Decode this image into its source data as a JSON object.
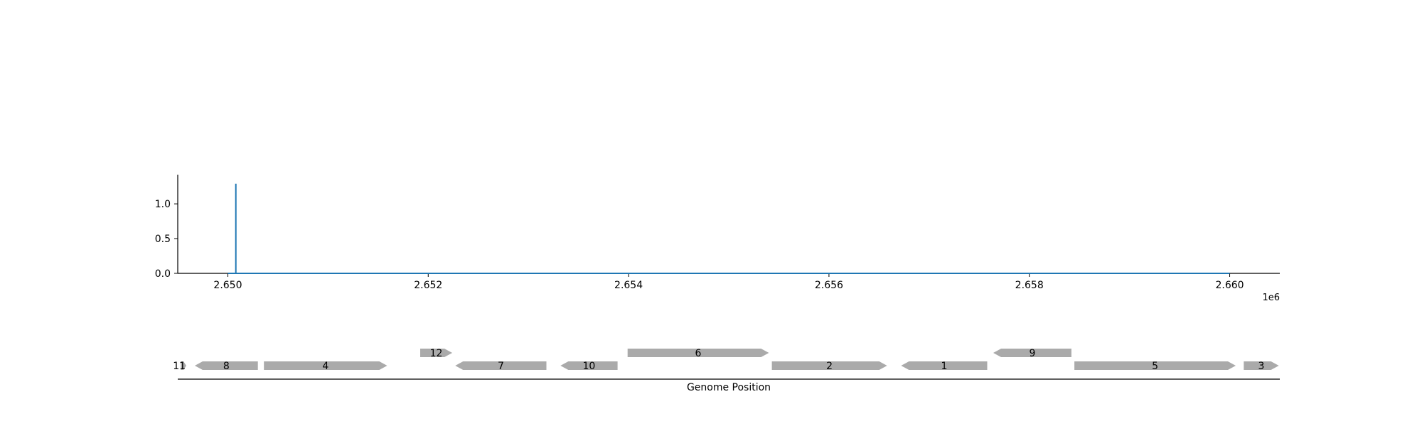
{
  "chart_data": [
    {
      "type": "line",
      "title": "",
      "xlabel": "",
      "ylabel": "",
      "x_offset_label": "1e6",
      "xlim": [
        2649500,
        2660500
      ],
      "ylim": [
        0,
        1.42
      ],
      "x_ticks": [
        2650000,
        2652000,
        2654000,
        2656000,
        2658000,
        2660000
      ],
      "x_tick_labels": [
        "2.650",
        "2.652",
        "2.654",
        "2.656",
        "2.658",
        "2.660"
      ],
      "y_ticks": [
        0.0,
        0.5,
        1.0
      ],
      "y_tick_labels": [
        "0.0",
        "0.5",
        "1.0"
      ],
      "grid": false,
      "color": "#1f77b4",
      "series": [
        {
          "x": [
            2650000,
            2650080,
            2650080,
            2650080,
            2650080,
            2660000
          ],
          "y": [
            0,
            0,
            1.29,
            0,
            0,
            0
          ]
        }
      ]
    },
    {
      "type": "gene_track",
      "xlabel": "Genome Position",
      "xlim": [
        2649500,
        2660500
      ],
      "gene_color": "#aaaaaa",
      "genes": [
        {
          "label": "11",
          "start": 2649530,
          "end": 2649585,
          "strand": 1,
          "row": 0
        },
        {
          "label": "8",
          "start": 2649670,
          "end": 2650300,
          "strand": -1,
          "row": 0
        },
        {
          "label": "4",
          "start": 2650360,
          "end": 2651590,
          "strand": 1,
          "row": 0
        },
        {
          "label": "12",
          "start": 2651920,
          "end": 2652240,
          "strand": 1,
          "row": 1
        },
        {
          "label": "7",
          "start": 2652270,
          "end": 2653180,
          "strand": -1,
          "row": 0
        },
        {
          "label": "10",
          "start": 2653320,
          "end": 2653890,
          "strand": -1,
          "row": 0
        },
        {
          "label": "6",
          "start": 2653990,
          "end": 2655400,
          "strand": 1,
          "row": 1
        },
        {
          "label": "2",
          "start": 2655430,
          "end": 2656580,
          "strand": 1,
          "row": 0
        },
        {
          "label": "1",
          "start": 2656720,
          "end": 2657580,
          "strand": -1,
          "row": 0
        },
        {
          "label": "9",
          "start": 2657640,
          "end": 2658420,
          "strand": -1,
          "row": 1
        },
        {
          "label": "5",
          "start": 2658450,
          "end": 2660060,
          "strand": 1,
          "row": 0
        },
        {
          "label": "3",
          "start": 2660140,
          "end": 2660490,
          "strand": 1,
          "row": 0
        }
      ]
    }
  ]
}
